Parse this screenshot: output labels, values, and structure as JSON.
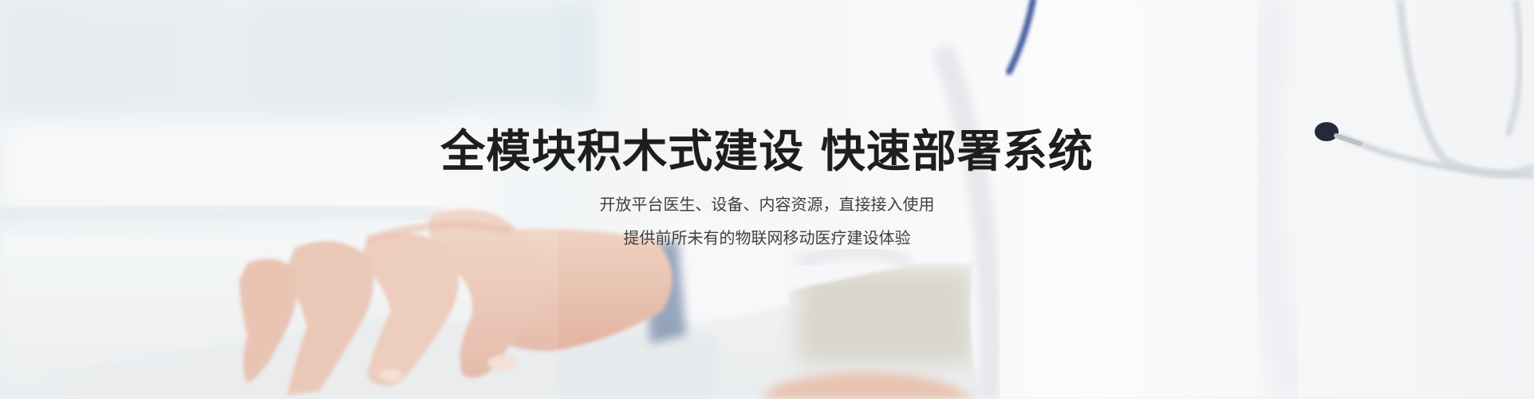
{
  "banner": {
    "background_photo": "doctor-typing-on-keyboard",
    "headline": "全模块积木式建设 快速部署系统",
    "subline_1": "开放平台医生、设备、内容资源，直接接入使用",
    "subline_2": "提供前所未有的物联网移动医疗建设体验",
    "colors": {
      "headline": "#1e1e1e",
      "subline": "#404040",
      "background": "#f3f5f6"
    }
  }
}
